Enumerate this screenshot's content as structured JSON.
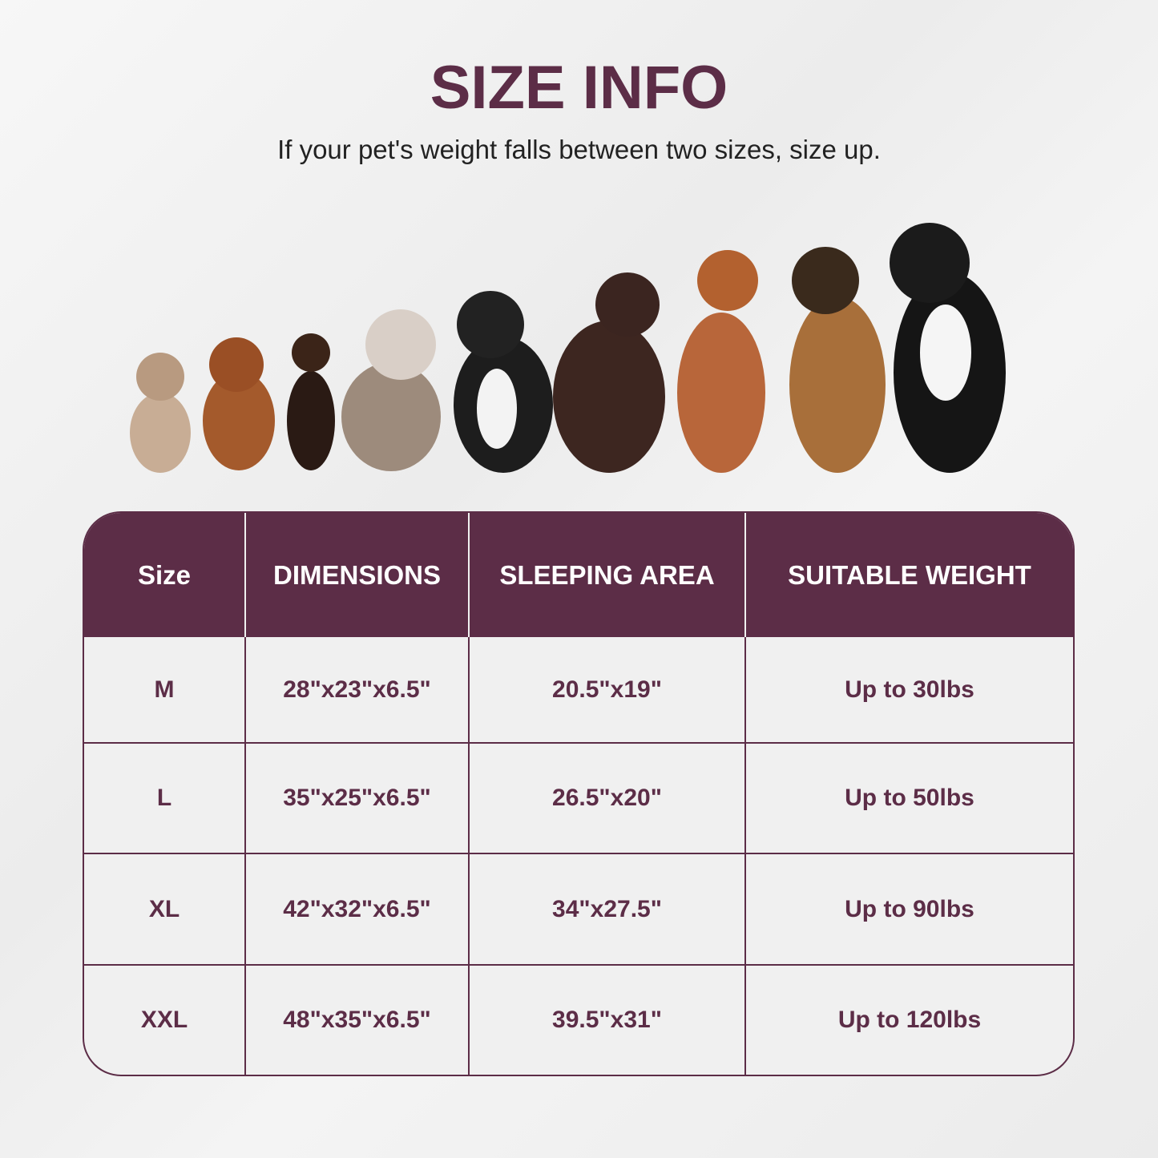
{
  "colors": {
    "accent": "#5c2d47",
    "text": "#222222",
    "background": "#f0f0f0"
  },
  "title": "SIZE INFO",
  "subtitle": "If your pet's weight falls between two sizes, size up.",
  "dogs_image": "row of nine dogs increasing in size from small to large",
  "table": {
    "headers": [
      "Size",
      "DIMENSIONS",
      "SLEEPING AREA",
      "SUITABLE WEIGHT"
    ],
    "rows": [
      [
        "M",
        "28\"x23\"x6.5\"",
        "20.5\"x19\"",
        "Up to 30lbs"
      ],
      [
        "L",
        "35\"x25\"x6.5\"",
        "26.5\"x20\"",
        "Up to 50lbs"
      ],
      [
        "XL",
        "42\"x32\"x6.5\"",
        "34\"x27.5\"",
        "Up to 90lbs"
      ],
      [
        "XXL",
        "48\"x35\"x6.5\"",
        "39.5\"x31\"",
        "Up to 120lbs"
      ]
    ]
  }
}
